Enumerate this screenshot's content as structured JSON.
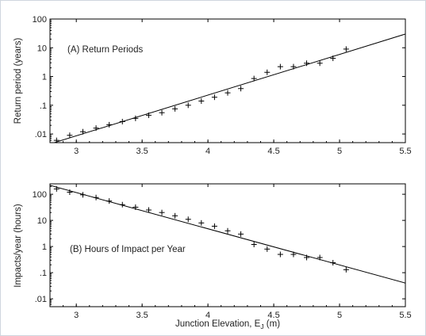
{
  "chart_data": [
    {
      "type": "scatter",
      "annotation": "(A) Return Periods",
      "ylabel": "Return period (years)",
      "xlabel": "",
      "xlim": [
        2.8,
        5.5
      ],
      "ylim": [
        0.005,
        100
      ],
      "yscale": "log",
      "x_ticks": [
        3,
        3.5,
        4,
        4.5,
        5,
        5.5
      ],
      "x_tick_labels": [
        "3",
        "3.5",
        "4",
        "4.5",
        "5",
        "5.5"
      ],
      "y_ticks": [
        0.01,
        0.1,
        1,
        10,
        100
      ],
      "y_tick_labels": [
        ".01",
        ".1",
        "1",
        "10",
        "100"
      ],
      "grid": false,
      "series": [
        {
          "marker": "+",
          "x": [
            2.85,
            2.95,
            3.05,
            3.15,
            3.25,
            3.35,
            3.45,
            3.55,
            3.65,
            3.75,
            3.85,
            3.95,
            4.05,
            4.15,
            4.25,
            4.35,
            4.45,
            4.55,
            4.65,
            4.75,
            4.85,
            4.95,
            5.05
          ],
          "y": [
            0.006,
            0.009,
            0.012,
            0.016,
            0.021,
            0.027,
            0.035,
            0.045,
            0.055,
            0.075,
            0.1,
            0.14,
            0.19,
            0.27,
            0.38,
            0.85,
            1.4,
            2.2,
            2.2,
            2.9,
            2.9,
            4.3,
            9.0
          ]
        },
        {
          "line": true,
          "x": [
            2.8,
            5.5
          ],
          "y": [
            0.0045,
            30
          ]
        }
      ]
    },
    {
      "type": "scatter",
      "annotation": "(B) Hours of Impact per Year",
      "ylabel": "Impacts/year (hours)",
      "xlabel": "Junction Elevation, E",
      "xlabel_subscript": "J",
      "xlabel_unit": " (m)",
      "xlim": [
        2.8,
        5.5
      ],
      "ylim": [
        0.005,
        250
      ],
      "yscale": "log",
      "x_ticks": [
        3,
        3.5,
        4,
        4.5,
        5,
        5.5
      ],
      "x_tick_labels": [
        "3",
        "3.5",
        "4",
        "4.5",
        "5",
        "5.5"
      ],
      "y_ticks": [
        0.01,
        0.1,
        1,
        10,
        100
      ],
      "y_tick_labels": [
        ".01",
        ".1",
        "1",
        "10",
        "100"
      ],
      "grid": false,
      "series": [
        {
          "marker": "+",
          "x": [
            2.85,
            2.95,
            3.05,
            3.15,
            3.25,
            3.35,
            3.45,
            3.55,
            3.65,
            3.75,
            3.85,
            3.95,
            4.05,
            4.15,
            4.25,
            4.35,
            4.45,
            4.55,
            4.65,
            4.75,
            4.85,
            4.95,
            5.05
          ],
          "y": [
            160,
            120,
            95,
            75,
            55,
            40,
            32,
            25,
            20,
            15,
            11,
            8,
            6,
            4,
            3,
            1.2,
            0.8,
            0.5,
            0.5,
            0.38,
            0.38,
            0.24,
            0.13
          ]
        },
        {
          "line": true,
          "x": [
            2.8,
            5.5
          ],
          "y": [
            220,
            0.04
          ]
        }
      ]
    }
  ]
}
